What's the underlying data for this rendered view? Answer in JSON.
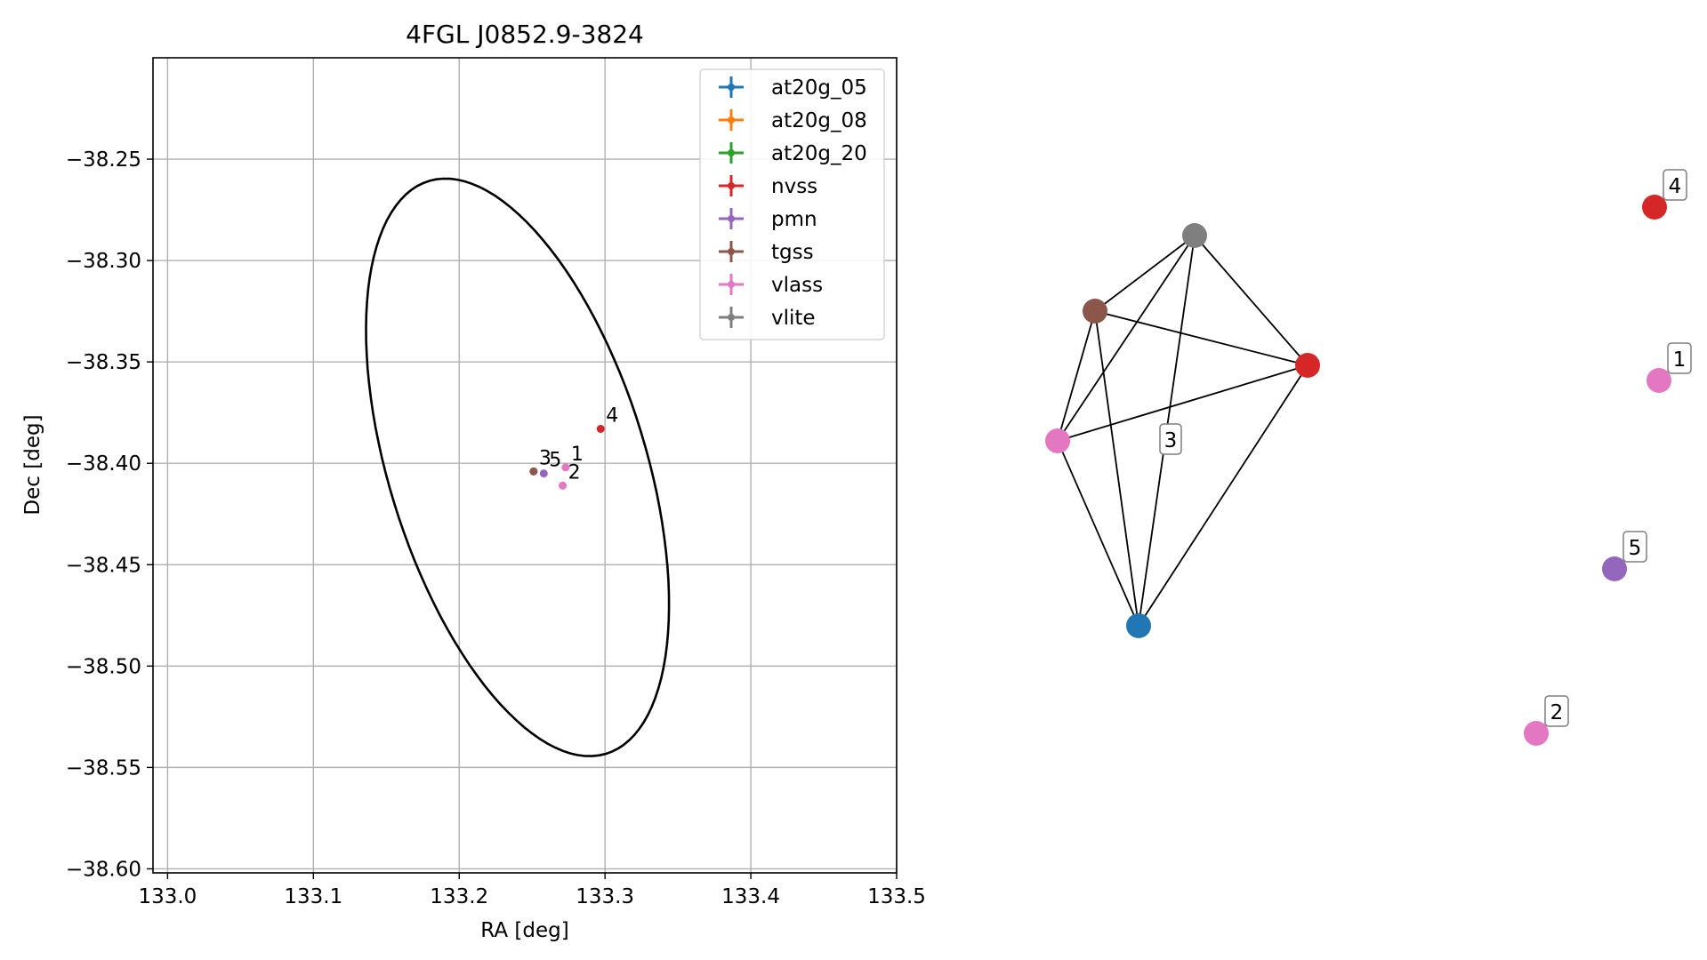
{
  "chart_data": [
    {
      "type": "scatter",
      "title": "4FGL J0852.9-3824",
      "xlabel": "RA [deg]",
      "ylabel": "Dec [deg]",
      "xlim": [
        132.99,
        133.5
      ],
      "ylim": [
        -38.602,
        -38.2
      ],
      "xticks": [
        {
          "value": 133.0,
          "label": "133.0"
        },
        {
          "value": 133.1,
          "label": "133.1"
        },
        {
          "value": 133.2,
          "label": "133.2"
        },
        {
          "value": 133.3,
          "label": "133.3"
        },
        {
          "value": 133.4,
          "label": "133.4"
        },
        {
          "value": 133.5,
          "label": "133.5"
        }
      ],
      "yticks": [
        {
          "value": -38.25,
          "label": "−38.25"
        },
        {
          "value": -38.3,
          "label": "−38.30"
        },
        {
          "value": -38.35,
          "label": "−38.35"
        },
        {
          "value": -38.4,
          "label": "−38.40"
        },
        {
          "value": -38.45,
          "label": "−38.45"
        },
        {
          "value": -38.5,
          "label": "−38.50"
        },
        {
          "value": -38.55,
          "label": "−38.55"
        },
        {
          "value": -38.6,
          "label": "−38.60"
        }
      ],
      "grid": true,
      "legend_position": "top-right",
      "legend": [
        {
          "name": "at20g_05",
          "color": "#1f77b4"
        },
        {
          "name": "at20g_08",
          "color": "#ff7f0e"
        },
        {
          "name": "at20g_20",
          "color": "#2ca02c"
        },
        {
          "name": "nvss",
          "color": "#d62728"
        },
        {
          "name": "pmn",
          "color": "#9467bd"
        },
        {
          "name": "tgss",
          "color": "#8c564b"
        },
        {
          "name": "vlass",
          "color": "#e377c2"
        },
        {
          "name": "vlite",
          "color": "#7f7f7f"
        }
      ],
      "ellipse": {
        "center": [
          133.24,
          -38.402
        ],
        "semi_axis_a_deg": 0.155,
        "semi_axis_b_deg": 0.084,
        "angle_deg": 62,
        "color": "#000000"
      },
      "points": [
        {
          "catalog": "vlite",
          "x": 133.251,
          "y": -38.404,
          "color": "#7f7f7f",
          "label": ""
        },
        {
          "catalog": "tgss",
          "x": 133.251,
          "y": -38.404,
          "color": "#8c564b",
          "label": "3"
        },
        {
          "catalog": "pmn",
          "x": 133.258,
          "y": -38.405,
          "color": "#9467bd",
          "label": "5"
        },
        {
          "catalog": "vlass",
          "x": 133.273,
          "y": -38.402,
          "color": "#e377c2",
          "label": "1"
        },
        {
          "catalog": "vlass",
          "x": 133.271,
          "y": -38.411,
          "color": "#e377c2",
          "label": "2"
        },
        {
          "catalog": "nvss",
          "x": 133.297,
          "y": -38.383,
          "color": "#d62728",
          "label": "4"
        }
      ]
    },
    {
      "type": "network",
      "cluster_label": "3",
      "nodes": [
        {
          "id": "vlite",
          "color": "#7f7f7f"
        },
        {
          "id": "tgss",
          "color": "#8c564b"
        },
        {
          "id": "nvss",
          "color": "#d62728"
        },
        {
          "id": "vlass",
          "color": "#e377c2"
        },
        {
          "id": "at20g",
          "color": "#1f77b4"
        }
      ],
      "edges": [
        [
          "vlite",
          "tgss"
        ],
        [
          "vlite",
          "nvss"
        ],
        [
          "vlite",
          "vlass"
        ],
        [
          "vlite",
          "at20g"
        ],
        [
          "tgss",
          "nvss"
        ],
        [
          "tgss",
          "vlass"
        ],
        [
          "tgss",
          "at20g"
        ],
        [
          "nvss",
          "vlass"
        ],
        [
          "nvss",
          "at20g"
        ],
        [
          "vlass",
          "at20g"
        ]
      ],
      "isolated": [
        {
          "label": "4",
          "color": "#d62728"
        },
        {
          "label": "1",
          "color": "#e377c2"
        },
        {
          "label": "5",
          "color": "#9467bd"
        },
        {
          "label": "2",
          "color": "#e377c2"
        }
      ]
    }
  ]
}
